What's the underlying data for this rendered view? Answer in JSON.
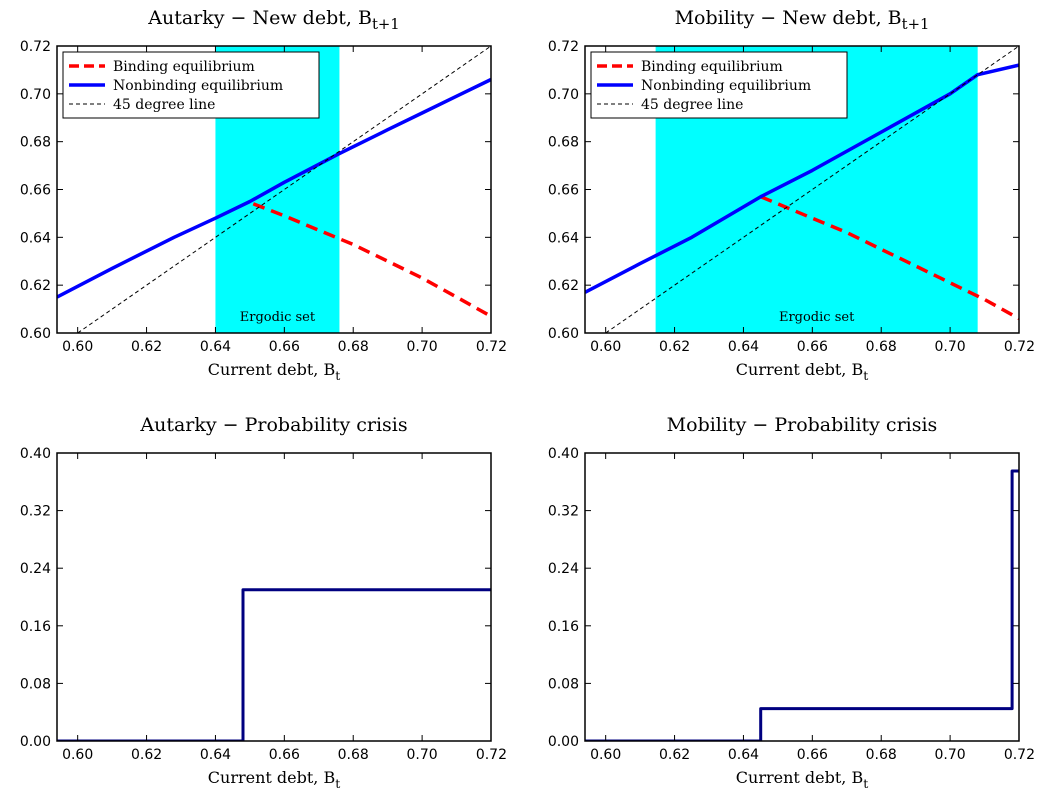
{
  "chart_data": [
    {
      "type": "line",
      "title": "Autarky − New debt, B",
      "title_sub": "t+1",
      "xlabel": "Current debt, B",
      "xlabel_sub": "t",
      "xlim": [
        0.594,
        0.72
      ],
      "ylim": [
        0.6,
        0.72
      ],
      "xticks": [
        0.6,
        0.62,
        0.64,
        0.66,
        0.68,
        0.7,
        0.72
      ],
      "yticks": [
        0.6,
        0.62,
        0.64,
        0.66,
        0.68,
        0.7,
        0.72
      ],
      "xtick_labels": [
        "0.60",
        "0.62",
        "0.64",
        "0.66",
        "0.68",
        "0.70",
        "0.72"
      ],
      "ytick_labels": [
        "0.60",
        "0.62",
        "0.64",
        "0.66",
        "0.68",
        "0.70",
        "0.72"
      ],
      "shaded_region": {
        "x": [
          0.64,
          0.676
        ],
        "color": "#00ffff",
        "label": "Ergodic set"
      },
      "legend": {
        "position": "top-left",
        "entries": [
          "Binding equilibrium",
          "Nonbinding equilibrium",
          "45 degree line"
        ]
      },
      "series": [
        {
          "name": "Binding equilibrium",
          "style": "dashed",
          "color": "#ff0000",
          "x": [
            0.651,
            0.66,
            0.67,
            0.68,
            0.69,
            0.7,
            0.71,
            0.72
          ],
          "y": [
            0.654,
            0.649,
            0.643,
            0.637,
            0.63,
            0.623,
            0.615,
            0.607
          ]
        },
        {
          "name": "Nonbinding equilibrium",
          "style": "solid",
          "color": "#0000ff",
          "x": [
            0.594,
            0.61,
            0.628,
            0.64,
            0.65,
            0.66,
            0.676,
            0.69,
            0.7,
            0.71,
            0.72
          ],
          "y": [
            0.615,
            0.627,
            0.64,
            0.648,
            0.655,
            0.663,
            0.675,
            0.685,
            0.692,
            0.699,
            0.706
          ]
        },
        {
          "name": "45 degree line",
          "style": "thin-dashed",
          "color": "#000000",
          "x": [
            0.6,
            0.72
          ],
          "y": [
            0.6,
            0.72
          ]
        }
      ]
    },
    {
      "type": "line",
      "title": "Mobility − New debt, B",
      "title_sub": "t+1",
      "xlabel": "Current debt, B",
      "xlabel_sub": "t",
      "xlim": [
        0.594,
        0.72
      ],
      "ylim": [
        0.6,
        0.72
      ],
      "xticks": [
        0.6,
        0.62,
        0.64,
        0.66,
        0.68,
        0.7,
        0.72
      ],
      "yticks": [
        0.6,
        0.62,
        0.64,
        0.66,
        0.68,
        0.7,
        0.72
      ],
      "xtick_labels": [
        "0.60",
        "0.62",
        "0.64",
        "0.66",
        "0.68",
        "0.70",
        "0.72"
      ],
      "ytick_labels": [
        "0.60",
        "0.62",
        "0.64",
        "0.66",
        "0.68",
        "0.70",
        "0.72"
      ],
      "shaded_region": {
        "x": [
          0.6145,
          0.708
        ],
        "color": "#00ffff",
        "label": "Ergodic set"
      },
      "legend": {
        "position": "top-left",
        "entries": [
          "Binding equilibrium",
          "Nonbinding equilibrium",
          "45 degree line"
        ]
      },
      "series": [
        {
          "name": "Binding equilibrium",
          "style": "dashed",
          "color": "#ff0000",
          "x": [
            0.645,
            0.66,
            0.67,
            0.68,
            0.69,
            0.7,
            0.71,
            0.72
          ],
          "y": [
            0.657,
            0.648,
            0.642,
            0.635,
            0.628,
            0.621,
            0.614,
            0.606
          ]
        },
        {
          "name": "Nonbinding equilibrium",
          "style": "solid",
          "color": "#0000ff",
          "x": [
            0.594,
            0.61,
            0.625,
            0.645,
            0.66,
            0.68,
            0.7,
            0.708,
            0.72
          ],
          "y": [
            0.617,
            0.629,
            0.64,
            0.657,
            0.668,
            0.684,
            0.7,
            0.708,
            0.712
          ]
        },
        {
          "name": "45 degree line",
          "style": "thin-dashed",
          "color": "#000000",
          "x": [
            0.6,
            0.72
          ],
          "y": [
            0.6,
            0.72
          ]
        }
      ]
    },
    {
      "type": "line",
      "title": "Autarky − Probability crisis",
      "xlabel": "Current debt, B",
      "xlabel_sub": "t",
      "xlim": [
        0.594,
        0.72
      ],
      "ylim": [
        0.0,
        0.4
      ],
      "xticks": [
        0.6,
        0.62,
        0.64,
        0.66,
        0.68,
        0.7,
        0.72
      ],
      "yticks": [
        0.0,
        0.08,
        0.16,
        0.24,
        0.32,
        0.4
      ],
      "xtick_labels": [
        "0.60",
        "0.62",
        "0.64",
        "0.66",
        "0.68",
        "0.70",
        "0.72"
      ],
      "ytick_labels": [
        "0.00",
        "0.08",
        "0.16",
        "0.24",
        "0.32",
        "0.40"
      ],
      "series": [
        {
          "name": "",
          "style": "step",
          "color": "#000080",
          "x": [
            0.594,
            0.648,
            0.648,
            0.72
          ],
          "y": [
            0.0,
            0.0,
            0.21,
            0.21
          ]
        }
      ]
    },
    {
      "type": "line",
      "title": "Mobility − Probability crisis",
      "xlabel": "Current debt, B",
      "xlabel_sub": "t",
      "xlim": [
        0.594,
        0.72
      ],
      "ylim": [
        0.0,
        0.4
      ],
      "xticks": [
        0.6,
        0.62,
        0.64,
        0.66,
        0.68,
        0.7,
        0.72
      ],
      "yticks": [
        0.0,
        0.08,
        0.16,
        0.24,
        0.32,
        0.4
      ],
      "xtick_labels": [
        "0.60",
        "0.62",
        "0.64",
        "0.66",
        "0.68",
        "0.70",
        "0.72"
      ],
      "ytick_labels": [
        "0.00",
        "0.08",
        "0.16",
        "0.24",
        "0.32",
        "0.40"
      ],
      "series": [
        {
          "name": "",
          "style": "step",
          "color": "#000080",
          "x": [
            0.594,
            0.645,
            0.645,
            0.718,
            0.718,
            0.72
          ],
          "y": [
            0.0,
            0.0,
            0.045,
            0.045,
            0.375,
            0.375
          ]
        }
      ]
    }
  ]
}
